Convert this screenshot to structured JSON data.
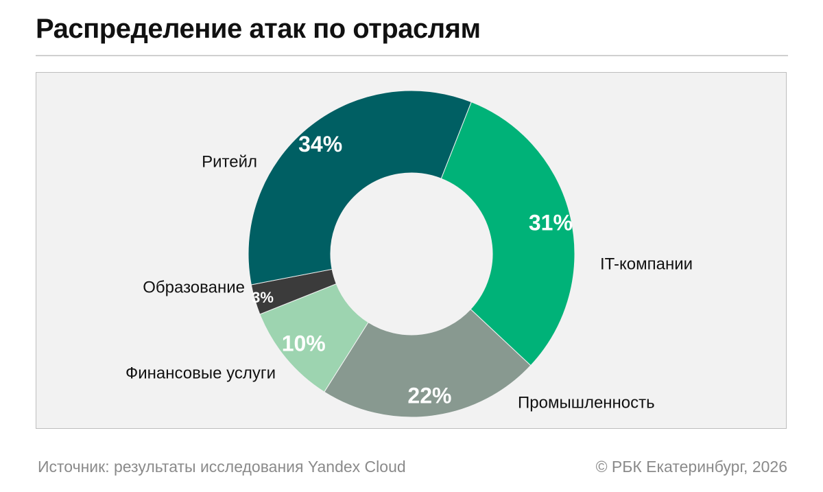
{
  "title": "Распределение атак по отраслям",
  "chart_data": {
    "type": "pie",
    "title": "Распределение атак по отраслям",
    "donut": true,
    "slices": [
      {
        "label": "IT-компании",
        "value": 31,
        "value_label": "31%",
        "color": "#00b278"
      },
      {
        "label": "Промышленность",
        "value": 22,
        "value_label": "22%",
        "color": "#889990"
      },
      {
        "label": "Финансовые услуги",
        "value": 10,
        "value_label": "10%",
        "color": "#9dd4b0"
      },
      {
        "label": "Образование",
        "value": 3,
        "value_label": "3%",
        "color": "#3b3b3b"
      },
      {
        "label": "Ритейл",
        "value": 34,
        "value_label": "34%",
        "color": "#005f63"
      }
    ]
  },
  "footer": {
    "source": "Источник: результаты исследования Yandex Cloud",
    "copyright": "© РБК Екатеринбург, 2026"
  }
}
